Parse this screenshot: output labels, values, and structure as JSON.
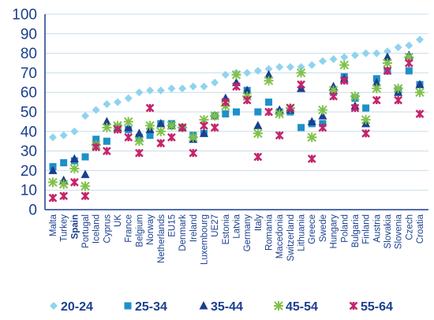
{
  "chart_data": {
    "type": "scatter",
    "ylim": [
      0,
      100
    ],
    "yticks": [
      0,
      10,
      20,
      30,
      40,
      50,
      60,
      70,
      80,
      90,
      100
    ],
    "grid": true,
    "legend_placement": "bottom",
    "highlight_category": "Spain",
    "highlight_color": "#c4246b",
    "categories": [
      "Malta",
      "Turkey",
      "Spain",
      "Portugal",
      "Iceland",
      "Cyprus",
      "UK",
      "France",
      "Belgium",
      "Norway",
      "Netherlands",
      "EU15",
      "Denmark",
      "Ireland",
      "Luxembourg",
      "UE27",
      "Estonia",
      "Latvia",
      "Germany",
      "Italy",
      "Romania",
      "Macedonia",
      "Switzerland",
      "Lithuania",
      "Greece",
      "Swede",
      "Hungary",
      "Poland",
      "Bulgaria",
      "Finland",
      "Austria",
      "Slovakia",
      "Slovenia",
      "Czech",
      "Croatia"
    ],
    "series": [
      {
        "name": "20-24",
        "marker": "diamond",
        "color": "#8fd3ef",
        "values": [
          37,
          38,
          40,
          48,
          51,
          54,
          55,
          57,
          60,
          61,
          61,
          62,
          62,
          63,
          63,
          65,
          69,
          70,
          70,
          71,
          72,
          73,
          73,
          73,
          74,
          76,
          77,
          78,
          79,
          80,
          80,
          81,
          83,
          84,
          87
        ]
      },
      {
        "name": "25-34",
        "marker": "square",
        "color": "#1e90c8",
        "values": [
          22,
          24,
          25,
          27,
          36,
          35,
          42,
          41,
          37,
          38,
          44,
          44,
          42,
          38,
          39,
          48,
          49,
          50,
          61,
          50,
          55,
          50,
          50,
          42,
          44,
          44,
          60,
          68,
          57,
          52,
          67,
          71,
          61,
          71,
          64
        ]
      },
      {
        "name": "35-44",
        "marker": "triangle",
        "color": "#1b3f8f",
        "values": [
          20,
          15,
          26,
          18,
          33,
          45,
          42,
          42,
          39,
          41,
          44,
          43,
          42,
          36,
          39,
          48,
          57,
          65,
          61,
          43,
          69,
          51,
          51,
          62,
          45,
          48,
          63,
          67,
          53,
          44,
          65,
          78,
          60,
          79,
          64
        ]
      },
      {
        "name": "45-54",
        "marker": "cross",
        "color": "#7fc24a",
        "values": [
          14,
          13,
          21,
          12,
          33,
          42,
          43,
          45,
          35,
          43,
          40,
          43,
          42,
          37,
          46,
          48,
          53,
          69,
          58,
          39,
          66,
          49,
          52,
          70,
          37,
          51,
          61,
          74,
          58,
          46,
          62,
          75,
          62,
          78,
          60
        ]
      },
      {
        "name": "55-64",
        "marker": "x",
        "color": "#c4246b",
        "values": [
          6,
          7,
          14,
          7,
          32,
          30,
          41,
          37,
          29,
          52,
          34,
          37,
          42,
          29,
          43,
          42,
          55,
          63,
          56,
          27,
          50,
          38,
          52,
          64,
          26,
          42,
          58,
          66,
          52,
          39,
          56,
          71,
          56,
          75,
          49
        ]
      }
    ]
  }
}
